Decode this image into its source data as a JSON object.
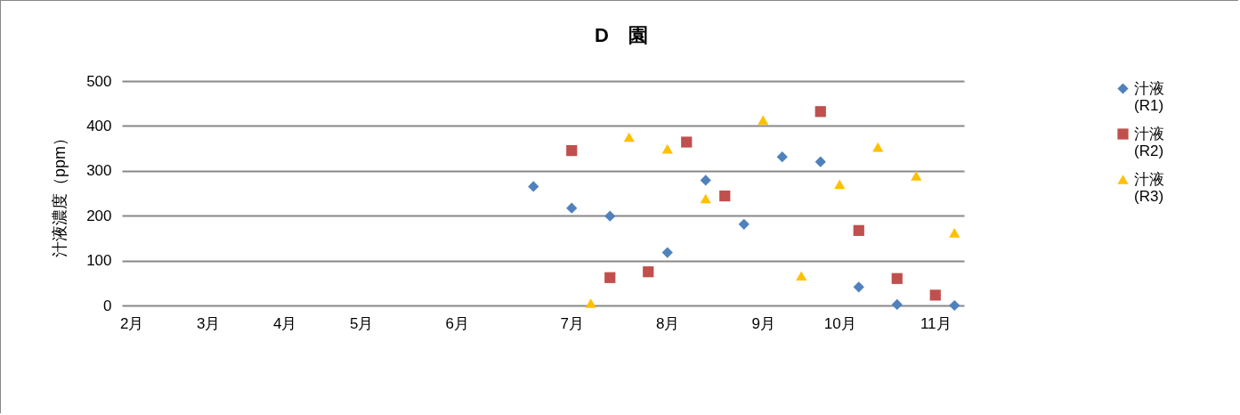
{
  "chart_data": {
    "type": "scatter",
    "title": "D　園",
    "ylabel": "汁液濃度（ppm）",
    "categories": [
      "2月",
      null,
      null,
      null,
      "3月",
      null,
      null,
      null,
      "4月",
      null,
      null,
      null,
      "5月",
      null,
      null,
      null,
      null,
      "6月",
      null,
      null,
      null,
      null,
      null,
      "7月",
      null,
      null,
      null,
      null,
      "8月",
      null,
      null,
      null,
      null,
      "9月",
      null,
      null,
      null,
      "10月",
      null,
      null,
      null,
      null,
      "11月",
      null
    ],
    "series": [
      {
        "name": "汁液 (R1)",
        "color": "#4f81bd",
        "marker": "diamond",
        "values": [
          null,
          null,
          null,
          null,
          null,
          null,
          null,
          null,
          null,
          null,
          null,
          null,
          null,
          null,
          null,
          null,
          null,
          null,
          null,
          null,
          null,
          265,
          null,
          217,
          null,
          199,
          null,
          null,
          118,
          null,
          279,
          null,
          181,
          null,
          331,
          null,
          320,
          null,
          41,
          null,
          2,
          null,
          null,
          0
        ]
      },
      {
        "name": "汁液 (R2)",
        "color": "#c0504d",
        "marker": "square",
        "values": [
          null,
          null,
          null,
          null,
          null,
          null,
          null,
          null,
          null,
          null,
          null,
          null,
          null,
          null,
          null,
          null,
          null,
          null,
          null,
          null,
          null,
          null,
          null,
          345,
          null,
          62,
          null,
          75,
          null,
          364,
          null,
          244,
          null,
          null,
          null,
          null,
          432,
          null,
          167,
          null,
          60,
          null,
          23,
          null
        ]
      },
      {
        "name": "汁液 (R3)",
        "color": "#ffc000",
        "marker": "triangle",
        "values": [
          null,
          null,
          null,
          null,
          null,
          null,
          null,
          null,
          null,
          null,
          null,
          null,
          null,
          null,
          null,
          null,
          null,
          null,
          null,
          null,
          null,
          null,
          null,
          null,
          5,
          null,
          375,
          null,
          349,
          null,
          238,
          null,
          null,
          413,
          null,
          66,
          null,
          270,
          null,
          353,
          null,
          289,
          null,
          162
        ]
      }
    ],
    "ylim": [
      0,
      500
    ],
    "yticks": [
      0,
      100,
      200,
      300,
      400,
      500
    ],
    "grid": "y",
    "legend": "right"
  }
}
